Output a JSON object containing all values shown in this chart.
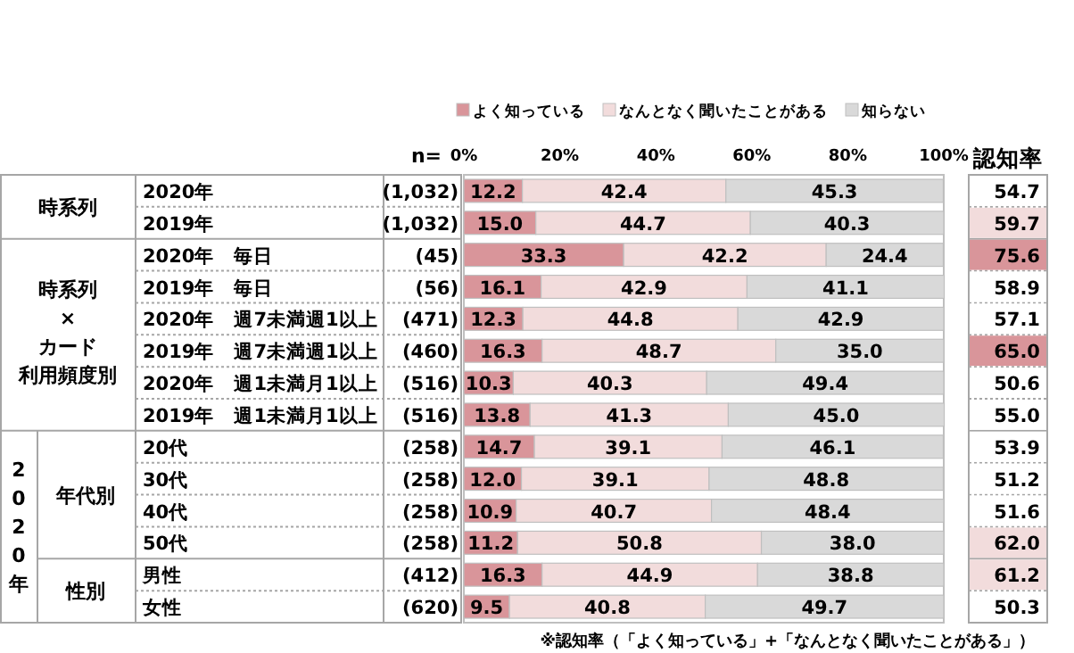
{
  "chart_data": [
    {
      "type": "bar",
      "orientation": "horizontal",
      "stacked": true,
      "legend": "top",
      "categories": [
        "2020年",
        "2019年",
        "2020年　毎日",
        "2019年　毎日",
        "2020年　週7未満週1以上",
        "2019年　週7未満週1以上",
        "2020年　週1未満月1以上",
        "2019年　週1未満月1以上",
        "20代",
        "30代",
        "40代",
        "50代",
        "男性",
        "女性"
      ],
      "series": [
        {
          "name": "よく知っている",
          "color": "#d9959a",
          "values": [
            12.2,
            15.0,
            33.3,
            16.1,
            12.3,
            16.3,
            10.3,
            13.8,
            14.7,
            12.0,
            10.9,
            11.2,
            16.3,
            9.5
          ],
          "value_labels": [
            "12.2",
            "15.0",
            "33.3",
            "16.1",
            "12.3",
            "16.3",
            "10.3",
            "13.8",
            "14.7",
            "12.0",
            "10.9",
            "11.2",
            "16.3",
            "9.5"
          ]
        },
        {
          "name": "なんとなく聞いたことがある",
          "color": "#f2dcdc",
          "values": [
            42.4,
            44.7,
            42.2,
            42.9,
            44.8,
            48.7,
            40.3,
            41.3,
            39.1,
            39.1,
            40.7,
            50.8,
            44.9,
            40.8
          ],
          "value_labels": [
            "42.4",
            "44.7",
            "42.2",
            "42.9",
            "44.8",
            "48.7",
            "40.3",
            "41.3",
            "39.1",
            "39.1",
            "40.7",
            "50.8",
            "44.9",
            "40.8"
          ]
        },
        {
          "name": "知らない",
          "color": "#d9d9d9",
          "values": [
            45.3,
            40.3,
            24.4,
            41.1,
            42.9,
            35.0,
            49.4,
            45.0,
            46.1,
            48.8,
            48.4,
            38.0,
            38.8,
            49.7
          ],
          "value_labels": [
            "45.3",
            "40.3",
            "24.4",
            "41.1",
            "42.9",
            "35.0",
            "49.4",
            "45.0",
            "46.1",
            "48.8",
            "48.4",
            "38.0",
            "38.8",
            "49.7"
          ]
        }
      ],
      "xlim": [
        0,
        100
      ],
      "xticks": [
        {
          "value": 0,
          "label": "0%"
        },
        {
          "value": 20,
          "label": "20%"
        },
        {
          "value": 40,
          "label": "40%"
        },
        {
          "value": 60,
          "label": "60%"
        },
        {
          "value": 80,
          "label": "80%"
        },
        {
          "value": 100,
          "label": "100%"
        }
      ],
      "annotations": [
        "n=",
        "時系列",
        "時系列",
        "×",
        "カード",
        "利用頻度別",
        "2020年",
        "年代別",
        "性別",
        "※認知率（「よく知っている」+「なんとなく聞いたことがある」）",
        "(1,032)",
        "(1,032)",
        "(45)",
        "(56)",
        "(471)",
        "(460)",
        "(516)",
        "(516)",
        "(258)",
        "(258)",
        "(258)",
        "(258)",
        "(412)",
        "(620)"
      ]
    },
    {
      "type": "other",
      "title": "認知率",
      "annotations": [
        "54.7",
        "59.7",
        "75.6",
        "58.9",
        "57.1",
        "65.0",
        "50.6",
        "55.0",
        "53.9",
        "51.2",
        "51.6",
        "62.0",
        "61.2",
        "50.3"
      ],
      "colors": [
        "#ffffff",
        "#f2dcdc",
        "#d9959a",
        "#ffffff",
        "#ffffff",
        "#d9959a",
        "#ffffff",
        "#ffffff",
        "#ffffff",
        "#ffffff",
        "#ffffff",
        "#f2dcdc",
        "#f2dcdc",
        "#ffffff"
      ]
    }
  ]
}
